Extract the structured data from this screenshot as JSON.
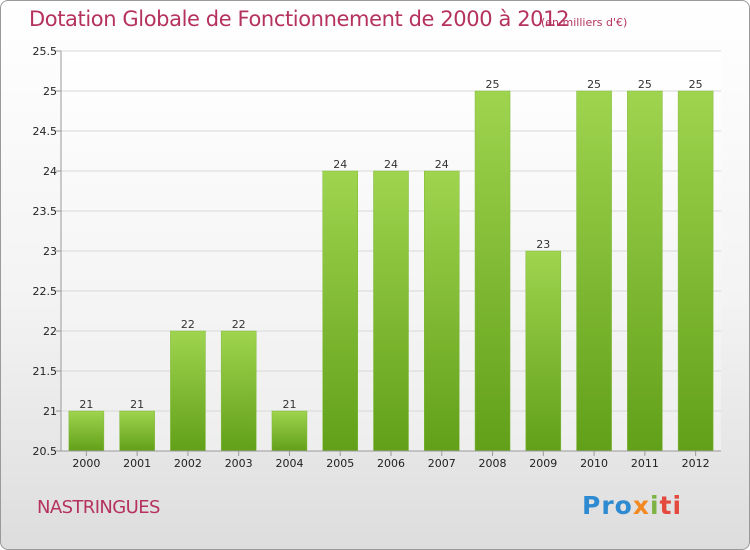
{
  "chart_data": {
    "type": "bar",
    "title": "Dotation Globale de Fonctionnement de 2000 à 2012",
    "subtitle": "(en milliers d'€)",
    "categories": [
      "2000",
      "2001",
      "2002",
      "2003",
      "2004",
      "2005",
      "2006",
      "2007",
      "2008",
      "2009",
      "2010",
      "2011",
      "2012"
    ],
    "values": [
      21,
      21,
      22,
      22,
      21,
      24,
      24,
      24,
      25,
      23,
      25,
      25,
      25
    ],
    "data_labels": [
      "21",
      "21",
      "22",
      "22",
      "21",
      "24",
      "24",
      "24",
      "25",
      "23",
      "25",
      "25",
      "25"
    ],
    "ylim": [
      20.5,
      25.5
    ],
    "yticks": [
      "20.5",
      "21",
      "21.5",
      "22",
      "22.5",
      "23",
      "23.5",
      "24",
      "24.5",
      "25",
      "25.5"
    ],
    "grid": true,
    "bar_color": "#8cc63f"
  },
  "commune_name": "NASTRINGUES",
  "logo": {
    "text": "Proxiti",
    "letters": [
      "Pro",
      "x",
      "i",
      "ti"
    ],
    "colors": [
      "#2f8bd1",
      "#f28a24",
      "#7cb342",
      "#e3493c"
    ]
  }
}
